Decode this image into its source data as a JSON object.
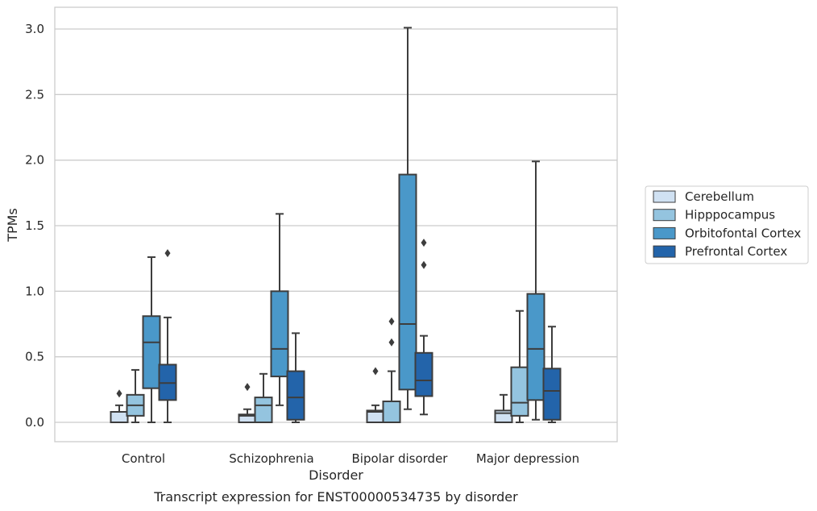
{
  "chart_data": {
    "type": "box",
    "caption": "Transcript expression for ENST00000534735 by disorder",
    "xlabel": "Disorder",
    "ylabel": "TPMs",
    "ylim": [
      -0.15,
      3.17
    ],
    "yticks": [
      0.0,
      0.5,
      1.0,
      1.5,
      2.0,
      2.5,
      3.0
    ],
    "ytick_labels": [
      "0.0",
      "0.5",
      "1.0",
      "1.5",
      "2.0",
      "2.5",
      "3.0"
    ],
    "grid": true,
    "legend_position": "right",
    "categories": [
      "Control",
      "Schizophrenia",
      "Bipolar disorder",
      "Major depression"
    ],
    "series": [
      {
        "name": "Cerebellum",
        "color": "#d0e1f2",
        "boxes": [
          {
            "whislo": 0.0,
            "q1": 0.0,
            "med": 0.08,
            "q3": 0.08,
            "whishi": 0.13,
            "fliers": [
              0.22
            ]
          },
          {
            "whislo": 0.0,
            "q1": 0.0,
            "med": 0.05,
            "q3": 0.06,
            "whishi": 0.1,
            "fliers": [
              0.27
            ]
          },
          {
            "whislo": 0.0,
            "q1": 0.0,
            "med": 0.08,
            "q3": 0.09,
            "whishi": 0.13,
            "fliers": [
              0.39
            ]
          },
          {
            "whislo": 0.0,
            "q1": 0.0,
            "med": 0.07,
            "q3": 0.09,
            "whishi": 0.21,
            "fliers": []
          }
        ]
      },
      {
        "name": "Hipppocampus",
        "color": "#94c4df",
        "boxes": [
          {
            "whislo": 0.0,
            "q1": 0.05,
            "med": 0.13,
            "q3": 0.21,
            "whishi": 0.4,
            "fliers": []
          },
          {
            "whislo": 0.0,
            "q1": 0.0,
            "med": 0.13,
            "q3": 0.19,
            "whishi": 0.37,
            "fliers": []
          },
          {
            "whislo": 0.0,
            "q1": 0.0,
            "med": 0.0,
            "q3": 0.16,
            "whishi": 0.39,
            "fliers": [
              0.61,
              0.77
            ]
          },
          {
            "whislo": 0.0,
            "q1": 0.05,
            "med": 0.15,
            "q3": 0.42,
            "whishi": 0.85,
            "fliers": []
          }
        ]
      },
      {
        "name": "Orbitofontal Cortex",
        "color": "#4a98c9",
        "boxes": [
          {
            "whislo": 0.0,
            "q1": 0.26,
            "med": 0.61,
            "q3": 0.81,
            "whishi": 1.26,
            "fliers": []
          },
          {
            "whislo": 0.13,
            "q1": 0.35,
            "med": 0.56,
            "q3": 1.0,
            "whishi": 1.59,
            "fliers": []
          },
          {
            "whislo": 0.1,
            "q1": 0.25,
            "med": 0.75,
            "q3": 1.89,
            "whishi": 3.01,
            "fliers": []
          },
          {
            "whislo": 0.02,
            "q1": 0.17,
            "med": 0.56,
            "q3": 0.98,
            "whishi": 1.99,
            "fliers": []
          }
        ]
      },
      {
        "name": "Prefrontal Cortex",
        "color": "#2364aa",
        "boxes": [
          {
            "whislo": 0.0,
            "q1": 0.17,
            "med": 0.3,
            "q3": 0.44,
            "whishi": 0.8,
            "fliers": [
              1.29
            ]
          },
          {
            "whislo": 0.0,
            "q1": 0.02,
            "med": 0.19,
            "q3": 0.39,
            "whishi": 0.68,
            "fliers": []
          },
          {
            "whislo": 0.06,
            "q1": 0.2,
            "med": 0.32,
            "q3": 0.53,
            "whishi": 0.66,
            "fliers": [
              1.2,
              1.37
            ]
          },
          {
            "whislo": 0.0,
            "q1": 0.02,
            "med": 0.24,
            "q3": 0.41,
            "whishi": 0.73,
            "fliers": []
          }
        ]
      }
    ]
  }
}
